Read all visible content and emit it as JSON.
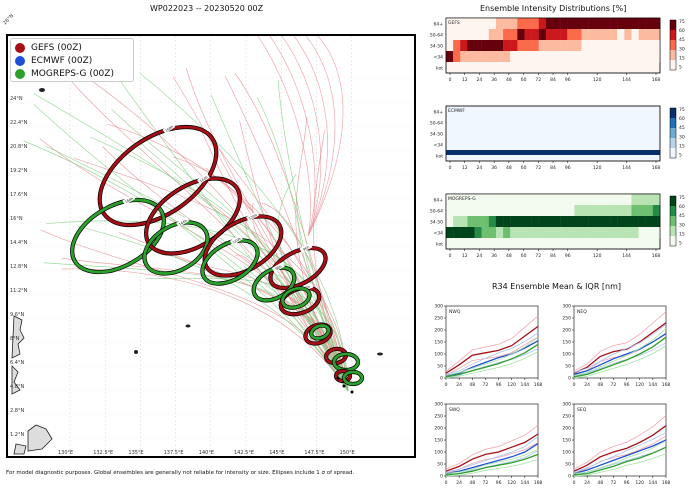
{
  "chart_data": [
    {
      "type": "map",
      "title": "WP022023 -- 20230520 00Z",
      "legend": [
        {
          "name": "GEFS (00Z)",
          "color": "#a50f15"
        },
        {
          "name": "ECMWF (00Z)",
          "color": "#1f4fd8"
        },
        {
          "name": "MOGREPS-G (00Z)",
          "color": "#2ca02c"
        }
      ],
      "x_ticks": [
        "130°E",
        "132.5°E",
        "135°E",
        "137.5°E",
        "140°E",
        "142.5°E",
        "145°E",
        "147.5°E",
        "150°E"
      ],
      "y_ticks": [
        "1.2°N",
        "2.8°N",
        "4.8°N",
        "6.4°N",
        "8°N",
        "9.6°N",
        "11.2°N",
        "12.8°N",
        "14.4°N",
        "16°N",
        "17.6°N",
        "19.2°N",
        "20.8°N",
        "22.4°N",
        "24°N",
        "25.6°N"
      ],
      "corner_label": "26°N",
      "ellipse_labels": [
        "168h",
        "144h",
        "120h",
        "96h",
        "72h",
        "48h",
        "24h"
      ],
      "footnote": "For model diagnostic purposes. Global ensembles are generally not reliable for intensity or size. Ellipses include 1 σ of spread."
    },
    {
      "type": "heatmap",
      "title": "Ensemble Intensity Distributions [%]",
      "x_ticks": [
        "0",
        "12",
        "24",
        "36",
        "48",
        "60",
        "72",
        "84",
        "96",
        "120",
        "144",
        "168"
      ],
      "x_hours": [
        0,
        12,
        24,
        36,
        48,
        60,
        72,
        84,
        96,
        120,
        144,
        168
      ],
      "y_labels": [
        "64+",
        "50-64",
        "34-50",
        "<34",
        "kot"
      ],
      "colorbar_ticks": [
        "75",
        "60",
        "45",
        "30",
        "15",
        "5"
      ],
      "panels": [
        {
          "name": "GEFS",
          "cmap": "red",
          "rows": {
            "64+": [
              0,
              0,
              0,
              0,
              0,
              0,
              0,
              5,
              10,
              15,
              20,
              20,
              30,
              45,
              50,
              60,
              70,
              75,
              80,
              80,
              80,
              80,
              80,
              80,
              80,
              80,
              80,
              80,
              80,
              75
            ],
            "50-64": [
              0,
              0,
              0,
              0,
              0,
              0,
              5,
              15,
              20,
              30,
              55,
              45,
              40,
              60,
              35,
              45,
              40,
              30,
              20,
              15,
              10,
              10,
              10,
              5,
              0,
              5,
              0,
              10,
              5,
              5
            ],
            "34-50": [
              0,
              30,
              40,
              75,
              75,
              75,
              75,
              60,
              40,
              35,
              20,
              30,
              25,
              10,
              15,
              10,
              5,
              5,
              5,
              0,
              0,
              0,
              0,
              0,
              0,
              0,
              0,
              0,
              0,
              0
            ],
            "<34": [
              60,
              20,
              15,
              5,
              5,
              5,
              5,
              5,
              5,
              0,
              0,
              0,
              0,
              0,
              0,
              0,
              0,
              0,
              0,
              0,
              0,
              0,
              0,
              0,
              0,
              0,
              0,
              0,
              0,
              0
            ]
          }
        },
        {
          "name": "ECMWF",
          "cmap": "blue",
          "rows": {
            "64+": [],
            "50-64": [],
            "34-50": [],
            "<34": [],
            "kot": [
              100
            ]
          }
        },
        {
          "name": "MOGREPS-G",
          "cmap": "green",
          "rows": {
            "64+": [
              0,
              0,
              0,
              0,
              0,
              0,
              0,
              0,
              0,
              0,
              0,
              0,
              0,
              0,
              0,
              0,
              0,
              0,
              0,
              0,
              0,
              0,
              0,
              0,
              0,
              0,
              5,
              10,
              10,
              5
            ],
            "50-64": [
              0,
              0,
              0,
              0,
              0,
              0,
              0,
              0,
              0,
              0,
              0,
              0,
              0,
              0,
              0,
              0,
              0,
              0,
              5,
              5,
              5,
              5,
              5,
              5,
              5,
              10,
              20,
              30,
              20,
              40
            ],
            "34-50": [
              0,
              10,
              15,
              20,
              30,
              30,
              40,
              60,
              50,
              60,
              70,
              75,
              75,
              75,
              75,
              75,
              75,
              75,
              75,
              75,
              75,
              75,
              75,
              75,
              75,
              75,
              70,
              60,
              70,
              50
            ],
            "<34": [
              90,
              80,
              70,
              50,
              40,
              30,
              25,
              15,
              20,
              15,
              5,
              5,
              5,
              5,
              5,
              5,
              5,
              5,
              5,
              5,
              5,
              5,
              5,
              5,
              5,
              5,
              5,
              0,
              0,
              0
            ]
          }
        }
      ]
    },
    {
      "type": "line",
      "title": "R34 Ensemble Mean & IQR [nm]",
      "x_ticks": [
        "0",
        "24",
        "48",
        "72",
        "96",
        "120",
        "144",
        "168"
      ],
      "x": [
        0,
        24,
        48,
        72,
        96,
        120,
        144,
        168
      ],
      "ylim": [
        0,
        300
      ],
      "y_ticks": [
        "0",
        "50",
        "100",
        "150",
        "200",
        "250",
        "300"
      ],
      "panels": [
        {
          "name": "NWQ",
          "series": [
            {
              "name": "GEFS",
              "values": [
                20,
                55,
                95,
                105,
                115,
                135,
                175,
                215
              ]
            },
            {
              "name": "ECMWF",
              "values": [
                10,
                20,
                45,
                65,
                85,
                100,
                125,
                155
              ]
            },
            {
              "name": "MOGREPS-G",
              "values": [
                5,
                15,
                30,
                45,
                60,
                80,
                105,
                140
              ]
            }
          ]
        },
        {
          "name": "NEQ",
          "series": [
            {
              "name": "GEFS",
              "values": [
                20,
                45,
                90,
                110,
                120,
                150,
                190,
                230
              ]
            },
            {
              "name": "ECMWF",
              "values": [
                15,
                30,
                55,
                80,
                100,
                120,
                150,
                185
              ]
            },
            {
              "name": "MOGREPS-G",
              "values": [
                5,
                15,
                35,
                55,
                75,
                100,
                130,
                170
              ]
            }
          ]
        },
        {
          "name": "SWQ",
          "series": [
            {
              "name": "GEFS",
              "values": [
                20,
                40,
                70,
                90,
                100,
                120,
                140,
                175
              ]
            },
            {
              "name": "ECMWF",
              "values": [
                10,
                20,
                35,
                50,
                65,
                80,
                100,
                135
              ]
            },
            {
              "name": "MOGREPS-G",
              "values": [
                5,
                10,
                20,
                35,
                45,
                55,
                70,
                90
              ]
            }
          ]
        },
        {
          "name": "SEQ",
          "series": [
            {
              "name": "GEFS",
              "values": [
                20,
                45,
                80,
                100,
                115,
                140,
                170,
                210
              ]
            },
            {
              "name": "ECMWF",
              "values": [
                10,
                25,
                45,
                65,
                85,
                105,
                125,
                150
              ]
            },
            {
              "name": "MOGREPS-G",
              "values": [
                5,
                10,
                25,
                40,
                60,
                75,
                95,
                120
              ]
            }
          ]
        }
      ]
    }
  ],
  "colors": {
    "gefs": "#a50f15",
    "ecmwf": "#1f4fd8",
    "mogreps": "#2ca02c"
  }
}
